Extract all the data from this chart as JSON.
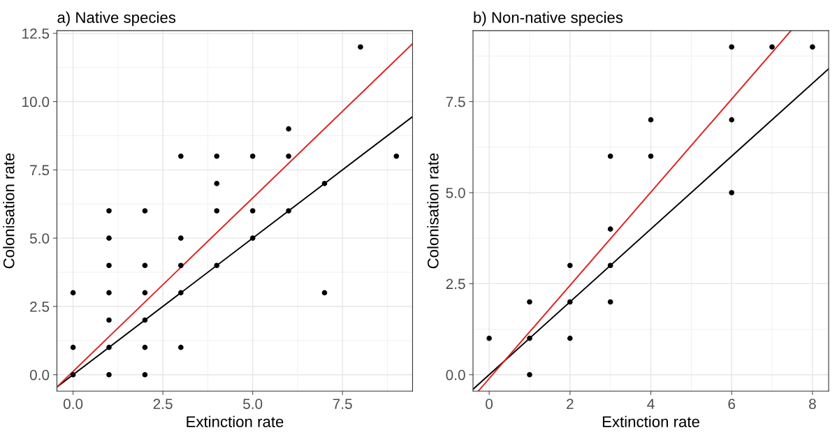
{
  "chart_data": [
    {
      "type": "scatter",
      "title": "a) Native species",
      "xlabel": "Extinction rate",
      "ylabel": "Colonisation rate",
      "xlim": [
        -0.45,
        9.45
      ],
      "ylim": [
        -0.6,
        12.6
      ],
      "xticks": [
        {
          "value": 0,
          "label": "0.0"
        },
        2.5,
        {
          "value": 5,
          "label": "5.0"
        },
        7.5
      ],
      "yticks": [
        {
          "value": 0,
          "label": "0.0"
        },
        2.5,
        {
          "value": 5,
          "label": "5.0"
        },
        7.5,
        {
          "value": 10,
          "label": "10.0"
        },
        12.5
      ],
      "grid": true,
      "series": [
        {
          "marker": "circle",
          "color": "#000000",
          "x": [
            0,
            0,
            0,
            1,
            1,
            1,
            1,
            1,
            1,
            1,
            2,
            2,
            2,
            2,
            2,
            2,
            3,
            3,
            3,
            3,
            3,
            4,
            4,
            4,
            4,
            5,
            5,
            5,
            6,
            6,
            6,
            7,
            7,
            8,
            9
          ],
          "values": [
            0,
            1,
            3,
            0,
            1,
            2,
            3,
            4,
            5,
            6,
            0,
            1,
            2,
            3,
            4,
            6,
            1,
            3,
            4,
            5,
            8,
            4,
            6,
            7,
            8,
            5,
            6,
            8,
            6,
            8,
            9,
            3,
            7,
            12,
            8
          ]
        },
        {
          "type": "line",
          "color": "#000000",
          "x": [
            -0.45,
            9.45
          ],
          "values": [
            -0.45,
            9.45
          ]
        },
        {
          "type": "line",
          "color": "#e02020",
          "x": [
            -0.45,
            9.45
          ],
          "values": [
            -0.45,
            12.12
          ]
        }
      ]
    },
    {
      "type": "scatter",
      "title": "b) Non-native species",
      "xlabel": "Extinction rate",
      "ylabel": "Colonisation rate",
      "xlim": [
        -0.4,
        8.4
      ],
      "ylim": [
        -0.45,
        9.45
      ],
      "xticks": [
        0,
        2,
        4,
        6,
        8
      ],
      "yticks": [
        {
          "value": 0,
          "label": "0.0"
        },
        2.5,
        {
          "value": 5,
          "label": "5.0"
        },
        7.5
      ],
      "grid": true,
      "series": [
        {
          "marker": "circle",
          "color": "#000000",
          "x": [
            0,
            1,
            1,
            1,
            2,
            2,
            2,
            3,
            3,
            3,
            3,
            4,
            4,
            6,
            6,
            6,
            7,
            8
          ],
          "values": [
            1,
            0,
            1,
            2,
            1,
            2,
            3,
            2,
            3,
            4,
            6,
            6,
            7,
            5,
            7,
            9,
            9,
            9
          ]
        },
        {
          "type": "line",
          "color": "#000000",
          "x": [
            -0.4,
            8.4
          ],
          "values": [
            -0.4,
            8.4
          ]
        },
        {
          "type": "line",
          "color": "#e02020",
          "x": [
            -0.27,
            7.47
          ],
          "values": [
            -0.45,
            9.45
          ]
        }
      ]
    }
  ]
}
